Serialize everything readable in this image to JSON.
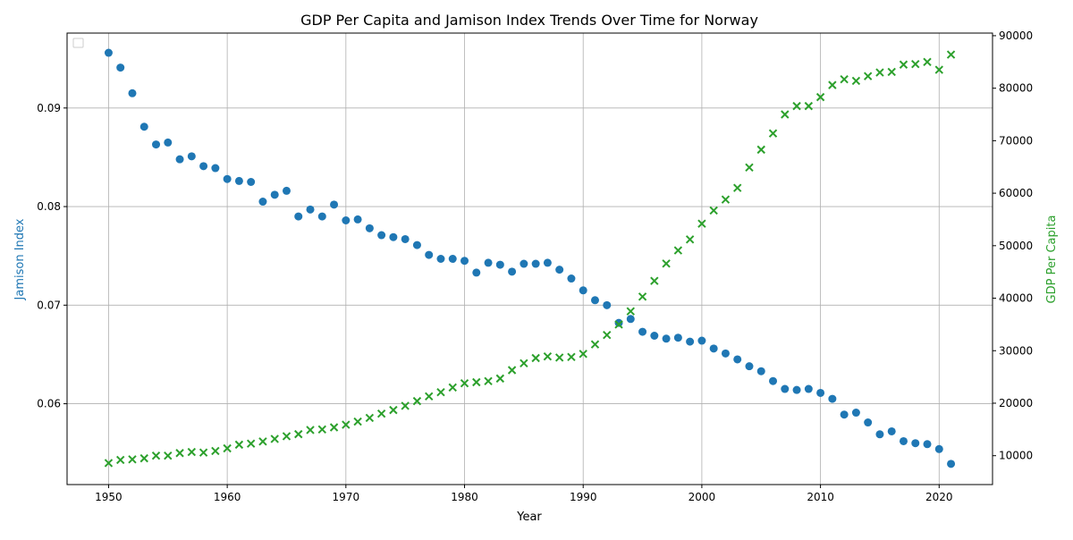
{
  "chart_data": {
    "type": "scatter",
    "title": "GDP Per Capita and Jamison Index Trends Over Time for Norway",
    "xlabel": "Year",
    "ylabel_left": "Jamison Index",
    "ylabel_right": "GDP Per Capita",
    "xlim": [
      1946.5,
      2024.5
    ],
    "ylim_left": [
      0.0518,
      0.0976
    ],
    "ylim_right": [
      4500,
      90500
    ],
    "x_ticks": [
      1950,
      1960,
      1970,
      1980,
      1990,
      2000,
      2010,
      2020
    ],
    "y_left_ticks": [
      0.06,
      0.07,
      0.08,
      0.09
    ],
    "y_right_ticks": [
      10000,
      20000,
      30000,
      40000,
      50000,
      60000,
      70000,
      80000,
      90000
    ],
    "grid": true,
    "legend": "top-left",
    "colors": {
      "left": "#1f77b4",
      "right": "#2ca02c"
    },
    "x": [
      1950,
      1951,
      1952,
      1953,
      1954,
      1955,
      1956,
      1957,
      1958,
      1959,
      1960,
      1961,
      1962,
      1963,
      1964,
      1965,
      1966,
      1967,
      1968,
      1969,
      1970,
      1971,
      1972,
      1973,
      1974,
      1975,
      1976,
      1977,
      1978,
      1979,
      1980,
      1981,
      1982,
      1983,
      1984,
      1985,
      1986,
      1987,
      1988,
      1989,
      1990,
      1991,
      1992,
      1993,
      1994,
      1995,
      1996,
      1997,
      1998,
      1999,
      2000,
      2001,
      2002,
      2003,
      2004,
      2005,
      2006,
      2007,
      2008,
      2009,
      2010,
      2011,
      2012,
      2013,
      2014,
      2015,
      2016,
      2017,
      2018,
      2019,
      2020,
      2021
    ],
    "series": [
      {
        "axis": "left",
        "marker": "circle",
        "values": [
          0.0956,
          0.0941,
          0.0915,
          0.0881,
          0.0863,
          0.0865,
          0.0848,
          0.0851,
          0.0841,
          0.0839,
          0.0828,
          0.0826,
          0.0825,
          0.0805,
          0.0812,
          0.0816,
          0.079,
          0.0797,
          0.079,
          0.0802,
          0.0786,
          0.0787,
          0.0778,
          0.0771,
          0.0769,
          0.0767,
          0.0761,
          0.0751,
          0.0747,
          0.0747,
          0.0745,
          0.0733,
          0.0743,
          0.0741,
          0.0734,
          0.0742,
          0.0742,
          0.0743,
          0.0736,
          0.0727,
          0.0715,
          0.0705,
          0.07,
          0.0682,
          0.0686,
          0.0673,
          0.0669,
          0.0666,
          0.0667,
          0.0663,
          0.0664,
          0.0656,
          0.0651,
          0.0645,
          0.0638,
          0.0633,
          0.0623,
          0.0615,
          0.0614,
          0.0615,
          0.0611,
          0.0605,
          0.0589,
          0.0591,
          0.0581,
          0.0569,
          0.0572,
          0.0562,
          0.056,
          0.0559,
          0.0554,
          0.0539
        ]
      },
      {
        "axis": "right",
        "marker": "x",
        "values": [
          8600,
          9200,
          9300,
          9500,
          10000,
          10000,
          10500,
          10700,
          10600,
          10900,
          11400,
          12100,
          12300,
          12700,
          13200,
          13700,
          14100,
          14900,
          15000,
          15400,
          15900,
          16500,
          17200,
          18000,
          18700,
          19500,
          20400,
          21300,
          22100,
          23000,
          23800,
          24000,
          24200,
          24700,
          26300,
          27600,
          28600,
          28900,
          28700,
          28800,
          29400,
          31200,
          33000,
          35000,
          37500,
          40300,
          43300,
          46600,
          49100,
          51200,
          54200,
          56700,
          58800,
          61000,
          64900,
          68300,
          71400,
          75000,
          76600,
          76600,
          78300,
          80600,
          81700,
          81400,
          82300,
          83000,
          83100,
          84500,
          84600,
          85000,
          83500,
          86400
        ]
      }
    ]
  }
}
